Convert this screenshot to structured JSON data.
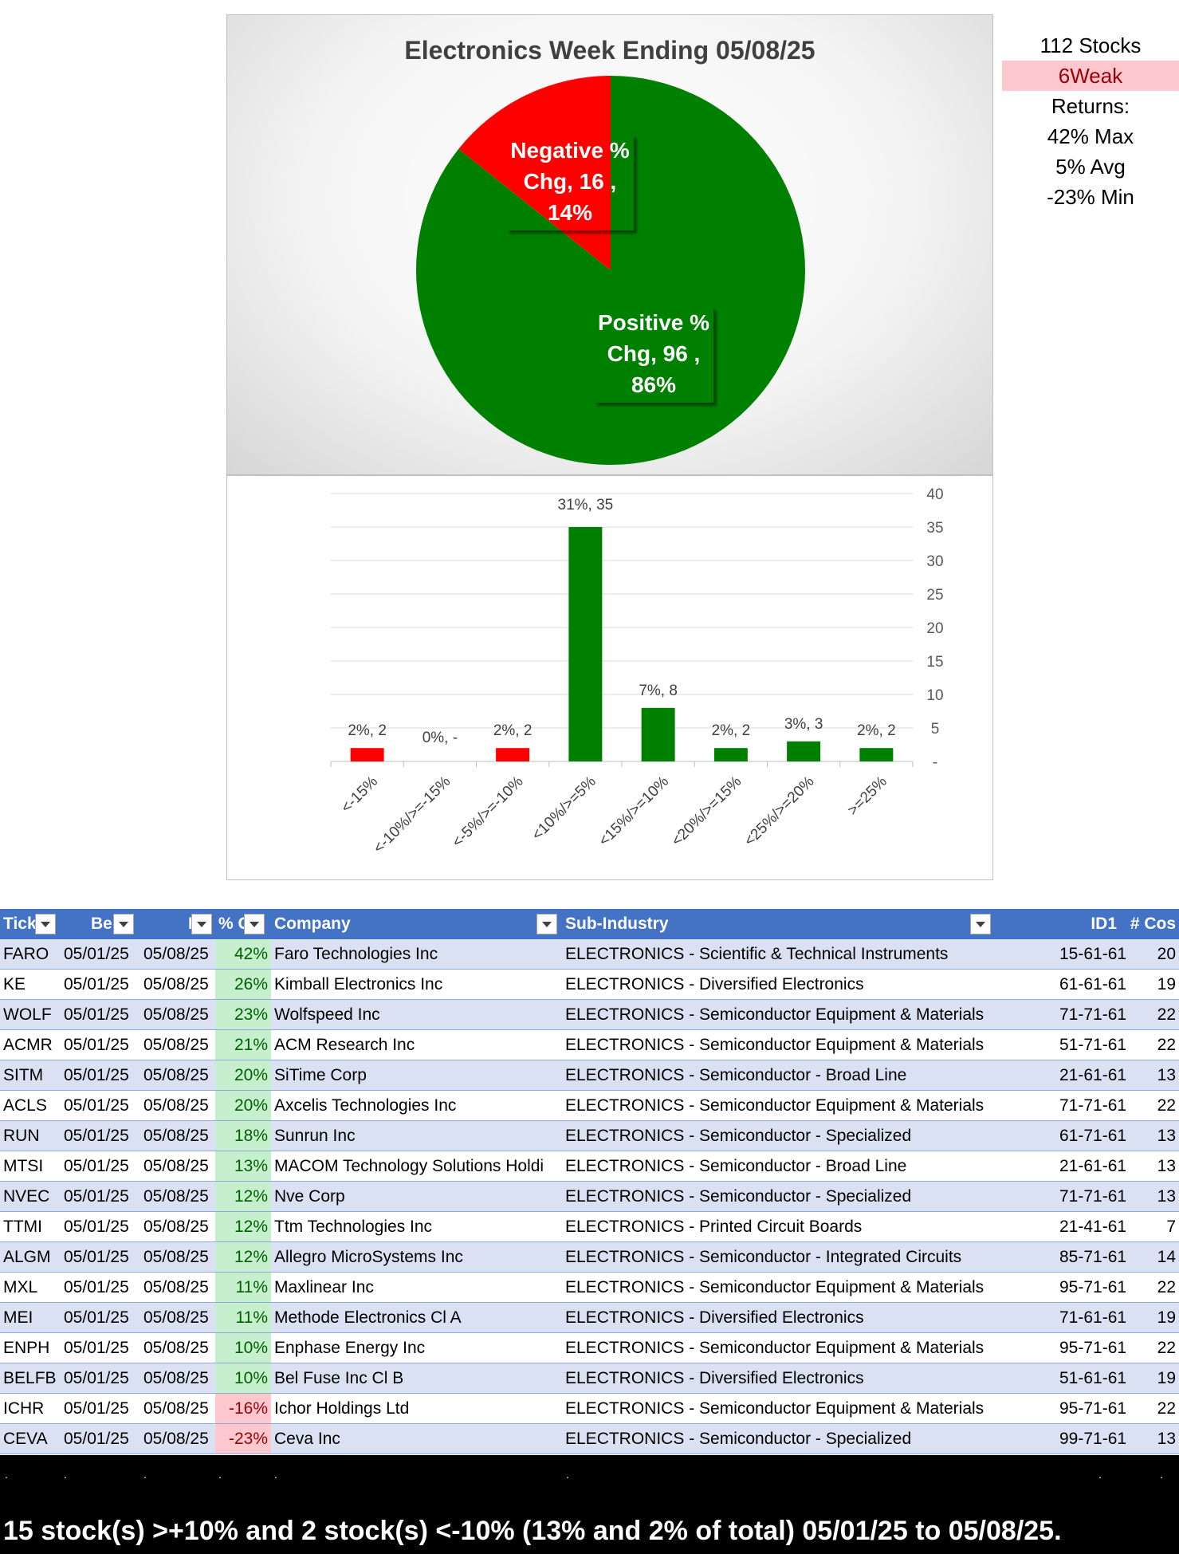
{
  "pie": {
    "title": "Electronics Week Ending 05/08/25",
    "colors": {
      "negative": "#ff0000",
      "positive": "#008000"
    }
  },
  "stats": {
    "count": "112 Stocks",
    "weak": "6Weak",
    "returns_label": "Returns:",
    "max": "42% Max",
    "avg": "5% Avg",
    "min": "-23% Min"
  },
  "chart_data": [
    {
      "type": "pie",
      "title": "Electronics Week Ending 05/08/25",
      "slices": [
        {
          "name": "Negative % Chg",
          "value": 16,
          "percent": 14,
          "label_lines": [
            "Negative %",
            "Chg,  16 ,",
            "14%"
          ]
        },
        {
          "name": "Positive % Chg",
          "value": 96,
          "percent": 86,
          "label_lines": [
            "Positive %",
            "Chg,  96 ,",
            "86%"
          ]
        }
      ]
    },
    {
      "type": "bar",
      "categories": [
        "<-15%",
        "<-10%/>=-15%",
        "<-5%/>=-10%",
        "<10%/>=5%",
        "<15%/>=10%",
        "<20%/>=15%",
        "<25%/>=20%",
        ">=25%"
      ],
      "values": [
        2,
        0,
        2,
        35,
        8,
        2,
        3,
        2
      ],
      "data_labels": [
        "2%,  2",
        "0%,  -",
        "2%,  2",
        "31%,  35",
        "7%,  8",
        "2%,  2",
        "3%,  3",
        "2%,  2"
      ],
      "colors": [
        "#ff0000",
        "#ff0000",
        "#ff0000",
        "#008000",
        "#008000",
        "#008000",
        "#008000",
        "#008000"
      ],
      "ylim": [
        0,
        40
      ],
      "y_ticks": [
        "-",
        "5",
        "10",
        "15",
        "20",
        "25",
        "30",
        "35",
        "40"
      ],
      "y_axis_side": "right",
      "grid": true
    }
  ],
  "table": {
    "headers": [
      "Tick",
      "Be",
      "E",
      "% C",
      "Company",
      "Sub-Industry",
      "ID1",
      "# Cos"
    ],
    "rows": [
      {
        "tick": "FARO",
        "begin": "05/01/25",
        "end": "05/08/25",
        "chg": "42%",
        "sign": "pos",
        "company": "Faro Technologies Inc",
        "sub": "ELECTRONICS - Scientific & Technical Instruments",
        "id1": "15-61-61",
        "cos": "20"
      },
      {
        "tick": "KE",
        "begin": "05/01/25",
        "end": "05/08/25",
        "chg": "26%",
        "sign": "pos",
        "company": "Kimball Electronics Inc",
        "sub": "ELECTRONICS - Diversified Electronics",
        "id1": "61-61-61",
        "cos": "19"
      },
      {
        "tick": "WOLF",
        "begin": "05/01/25",
        "end": "05/08/25",
        "chg": "23%",
        "sign": "pos",
        "company": "Wolfspeed Inc",
        "sub": "ELECTRONICS - Semiconductor Equipment & Materials",
        "id1": "71-71-61",
        "cos": "22"
      },
      {
        "tick": "ACMR",
        "begin": "05/01/25",
        "end": "05/08/25",
        "chg": "21%",
        "sign": "pos",
        "company": "ACM Research Inc",
        "sub": "ELECTRONICS - Semiconductor Equipment & Materials",
        "id1": "51-71-61",
        "cos": "22"
      },
      {
        "tick": "SITM",
        "begin": "05/01/25",
        "end": "05/08/25",
        "chg": "20%",
        "sign": "pos",
        "company": "SiTime Corp",
        "sub": "ELECTRONICS - Semiconductor - Broad Line",
        "id1": "21-61-61",
        "cos": "13"
      },
      {
        "tick": "ACLS",
        "begin": "05/01/25",
        "end": "05/08/25",
        "chg": "20%",
        "sign": "pos",
        "company": "Axcelis Technologies Inc",
        "sub": "ELECTRONICS - Semiconductor Equipment & Materials",
        "id1": "71-71-61",
        "cos": "22"
      },
      {
        "tick": "RUN",
        "begin": "05/01/25",
        "end": "05/08/25",
        "chg": "18%",
        "sign": "pos",
        "company": "Sunrun Inc",
        "sub": "ELECTRONICS - Semiconductor - Specialized",
        "id1": "61-71-61",
        "cos": "13"
      },
      {
        "tick": "MTSI",
        "begin": "05/01/25",
        "end": "05/08/25",
        "chg": "13%",
        "sign": "pos",
        "company": "MACOM Technology Solutions Holdi",
        "sub": "ELECTRONICS - Semiconductor - Broad Line",
        "id1": "21-61-61",
        "cos": "13"
      },
      {
        "tick": "NVEC",
        "begin": "05/01/25",
        "end": "05/08/25",
        "chg": "12%",
        "sign": "pos",
        "company": "Nve Corp",
        "sub": "ELECTRONICS - Semiconductor - Specialized",
        "id1": "71-71-61",
        "cos": "13"
      },
      {
        "tick": "TTMI",
        "begin": "05/01/25",
        "end": "05/08/25",
        "chg": "12%",
        "sign": "pos",
        "company": "Ttm Technologies Inc",
        "sub": "ELECTRONICS - Printed Circuit Boards",
        "id1": "21-41-61",
        "cos": "7"
      },
      {
        "tick": "ALGM",
        "begin": "05/01/25",
        "end": "05/08/25",
        "chg": "12%",
        "sign": "pos",
        "company": "Allegro MicroSystems Inc",
        "sub": "ELECTRONICS - Semiconductor - Integrated Circuits",
        "id1": "85-71-61",
        "cos": "14"
      },
      {
        "tick": "MXL",
        "begin": "05/01/25",
        "end": "05/08/25",
        "chg": "11%",
        "sign": "pos",
        "company": "Maxlinear Inc",
        "sub": "ELECTRONICS - Semiconductor Equipment & Materials",
        "id1": "95-71-61",
        "cos": "22"
      },
      {
        "tick": "MEI",
        "begin": "05/01/25",
        "end": "05/08/25",
        "chg": "11%",
        "sign": "pos",
        "company": "Methode Electronics Cl A",
        "sub": "ELECTRONICS - Diversified Electronics",
        "id1": "71-61-61",
        "cos": "19"
      },
      {
        "tick": "ENPH",
        "begin": "05/01/25",
        "end": "05/08/25",
        "chg": "10%",
        "sign": "pos",
        "company": "Enphase Energy Inc",
        "sub": "ELECTRONICS - Semiconductor Equipment & Materials",
        "id1": "95-71-61",
        "cos": "22"
      },
      {
        "tick": "BELFB",
        "begin": "05/01/25",
        "end": "05/08/25",
        "chg": "10%",
        "sign": "pos",
        "company": "Bel Fuse Inc Cl B",
        "sub": "ELECTRONICS - Diversified Electronics",
        "id1": "51-61-61",
        "cos": "19"
      },
      {
        "tick": "ICHR",
        "begin": "05/01/25",
        "end": "05/08/25",
        "chg": "-16%",
        "sign": "neg",
        "company": "Ichor Holdings Ltd",
        "sub": "ELECTRONICS - Semiconductor Equipment & Materials",
        "id1": "95-71-61",
        "cos": "22"
      },
      {
        "tick": "CEVA",
        "begin": "05/01/25",
        "end": "05/08/25",
        "chg": "-23%",
        "sign": "neg",
        "company": "Ceva Inc",
        "sub": "ELECTRONICS - Semiconductor - Specialized",
        "id1": "99-71-61",
        "cos": "13"
      }
    ]
  },
  "footer": {
    "dots": [
      ".",
      ".",
      ".",
      ".",
      ".",
      ".",
      ".",
      ".",
      ".",
      "."
    ],
    "summary": "15 stock(s) >+10% and 2 stock(s) <-10% (13% and 2% of total) 05/01/25 to 05/08/25."
  }
}
